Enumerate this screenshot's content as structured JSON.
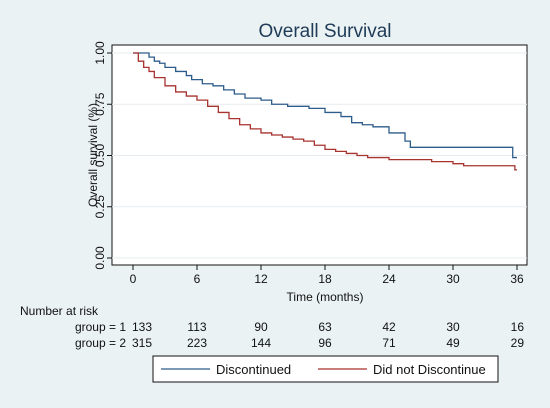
{
  "chart_data": {
    "type": "line",
    "title": "Overall Survival",
    "xlabel": "Time (months)",
    "ylabel": "Overall survival (%)",
    "xlim": [
      0,
      36
    ],
    "ylim": [
      0,
      1
    ],
    "xticks": [
      "0",
      "6",
      "12",
      "18",
      "24",
      "30",
      "36"
    ],
    "yticks": [
      "0.00",
      "0.25",
      "0.50",
      "0.75",
      "1.00"
    ],
    "grid": "horizontal",
    "legend_position": "bottom",
    "series": [
      {
        "name": "Discontinued",
        "color": "#2e5c8a",
        "points": [
          [
            0,
            1.0
          ],
          [
            1.3,
            1.0
          ],
          [
            1.5,
            0.98
          ],
          [
            2.0,
            0.96
          ],
          [
            2.5,
            0.95
          ],
          [
            3.0,
            0.93
          ],
          [
            4.0,
            0.91
          ],
          [
            5.0,
            0.89
          ],
          [
            5.5,
            0.87
          ],
          [
            6.5,
            0.85
          ],
          [
            7.5,
            0.84
          ],
          [
            8.5,
            0.82
          ],
          [
            9.5,
            0.8
          ],
          [
            10.5,
            0.78
          ],
          [
            12.0,
            0.77
          ],
          [
            13.0,
            0.75
          ],
          [
            14.5,
            0.74
          ],
          [
            16.5,
            0.73
          ],
          [
            18.0,
            0.71
          ],
          [
            19.5,
            0.69
          ],
          [
            20.5,
            0.66
          ],
          [
            21.5,
            0.65
          ],
          [
            22.5,
            0.64
          ],
          [
            24.0,
            0.61
          ],
          [
            25.5,
            0.57
          ],
          [
            26.0,
            0.54
          ],
          [
            29.0,
            0.54
          ],
          [
            35.5,
            0.54
          ],
          [
            35.6,
            0.49
          ],
          [
            36.0,
            0.49
          ]
        ]
      },
      {
        "name": "Did not Discontinue",
        "color": "#a8332f",
        "points": [
          [
            0,
            1.0
          ],
          [
            0.5,
            0.96
          ],
          [
            1.0,
            0.93
          ],
          [
            1.5,
            0.91
          ],
          [
            2.0,
            0.88
          ],
          [
            3.0,
            0.84
          ],
          [
            4.0,
            0.81
          ],
          [
            5.0,
            0.79
          ],
          [
            6.0,
            0.77
          ],
          [
            7.0,
            0.74
          ],
          [
            8.0,
            0.71
          ],
          [
            9.0,
            0.68
          ],
          [
            10.0,
            0.65
          ],
          [
            11.0,
            0.63
          ],
          [
            12.0,
            0.61
          ],
          [
            13.0,
            0.6
          ],
          [
            14.0,
            0.59
          ],
          [
            15.0,
            0.58
          ],
          [
            16.0,
            0.57
          ],
          [
            17.0,
            0.55
          ],
          [
            18.0,
            0.53
          ],
          [
            19.0,
            0.52
          ],
          [
            20.0,
            0.51
          ],
          [
            21.0,
            0.5
          ],
          [
            22.0,
            0.49
          ],
          [
            24.0,
            0.48
          ],
          [
            27.0,
            0.48
          ],
          [
            28.0,
            0.47
          ],
          [
            30.0,
            0.46
          ],
          [
            31.0,
            0.45
          ],
          [
            35.5,
            0.45
          ],
          [
            35.8,
            0.43
          ],
          [
            36.0,
            0.43
          ]
        ]
      }
    ],
    "risk_table": {
      "title": "Number at risk",
      "rows": [
        {
          "label": "group = 1",
          "values": [
            "133",
            "113",
            "90",
            "63",
            "42",
            "30",
            "16"
          ]
        },
        {
          "label": "group = 2",
          "values": [
            "315",
            "223",
            "144",
            "96",
            "71",
            "49",
            "29"
          ]
        }
      ]
    }
  }
}
